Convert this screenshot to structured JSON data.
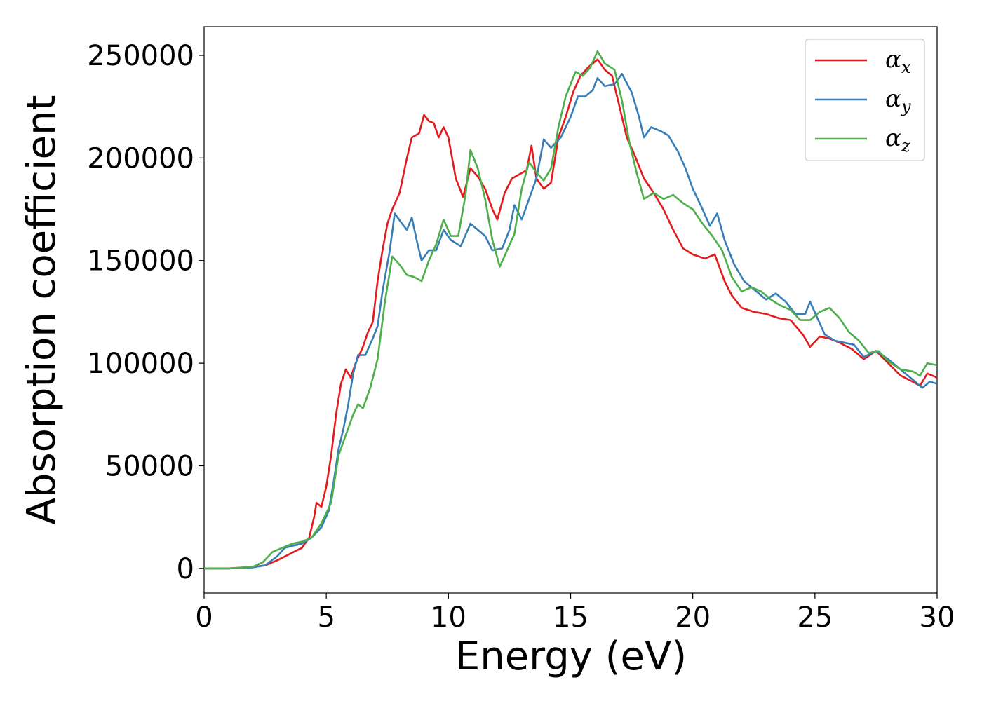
{
  "chart_data": {
    "type": "line",
    "title": "",
    "xlabel": "Energy (eV)",
    "ylabel": "Absorption coefficient",
    "xlim": [
      0,
      30
    ],
    "ylim": [
      -12000,
      264000
    ],
    "xticks": [
      0,
      5,
      10,
      15,
      20,
      25,
      30
    ],
    "yticks": [
      0,
      50000,
      100000,
      150000,
      200000,
      250000
    ],
    "xtick_labels": [
      "0",
      "5",
      "10",
      "15",
      "20",
      "25",
      "30"
    ],
    "ytick_labels": [
      "0",
      "50000",
      "100000",
      "150000",
      "200000",
      "250000"
    ],
    "grid": false,
    "legend_position": "top-right",
    "series": [
      {
        "name": "α_x",
        "symbol": "α",
        "subscript": "x",
        "color": "#e41a1c",
        "points": [
          [
            0,
            0
          ],
          [
            1,
            0
          ],
          [
            2,
            800
          ],
          [
            2.5,
            1500
          ],
          [
            3,
            4000
          ],
          [
            3.5,
            7000
          ],
          [
            4,
            10000
          ],
          [
            4.3,
            15000
          ],
          [
            4.5,
            25000
          ],
          [
            4.6,
            32000
          ],
          [
            4.8,
            30000
          ],
          [
            5,
            40000
          ],
          [
            5.2,
            55000
          ],
          [
            5.4,
            75000
          ],
          [
            5.6,
            90000
          ],
          [
            5.8,
            97000
          ],
          [
            6,
            93000
          ],
          [
            6.2,
            100000
          ],
          [
            6.5,
            108000
          ],
          [
            6.7,
            115000
          ],
          [
            6.9,
            120000
          ],
          [
            7.1,
            140000
          ],
          [
            7.3,
            155000
          ],
          [
            7.5,
            168000
          ],
          [
            7.7,
            175000
          ],
          [
            8,
            183000
          ],
          [
            8.3,
            200000
          ],
          [
            8.5,
            210000
          ],
          [
            8.8,
            212000
          ],
          [
            9,
            221000
          ],
          [
            9.2,
            218000
          ],
          [
            9.4,
            217000
          ],
          [
            9.6,
            210000
          ],
          [
            9.8,
            215000
          ],
          [
            10,
            210000
          ],
          [
            10.3,
            190000
          ],
          [
            10.6,
            181000
          ],
          [
            10.9,
            195000
          ],
          [
            11.2,
            191000
          ],
          [
            11.5,
            185000
          ],
          [
            11.8,
            175000
          ],
          [
            12,
            170000
          ],
          [
            12.3,
            183000
          ],
          [
            12.6,
            190000
          ],
          [
            12.9,
            192000
          ],
          [
            13.2,
            194000
          ],
          [
            13.4,
            206000
          ],
          [
            13.6,
            190000
          ],
          [
            13.9,
            185000
          ],
          [
            14.2,
            188000
          ],
          [
            14.5,
            210000
          ],
          [
            14.8,
            220000
          ],
          [
            15.1,
            232000
          ],
          [
            15.4,
            240000
          ],
          [
            15.7,
            244000
          ],
          [
            16.1,
            248000
          ],
          [
            16.4,
            243000
          ],
          [
            16.7,
            240000
          ],
          [
            17,
            225000
          ],
          [
            17.3,
            210000
          ],
          [
            17.6,
            202000
          ],
          [
            18,
            190000
          ],
          [
            18.4,
            183000
          ],
          [
            18.8,
            175000
          ],
          [
            19.2,
            165000
          ],
          [
            19.6,
            156000
          ],
          [
            20,
            153000
          ],
          [
            20.5,
            151000
          ],
          [
            20.9,
            153000
          ],
          [
            21.3,
            140000
          ],
          [
            21.6,
            133000
          ],
          [
            22,
            127000
          ],
          [
            22.5,
            125000
          ],
          [
            23,
            124000
          ],
          [
            23.5,
            122000
          ],
          [
            24,
            121000
          ],
          [
            24.5,
            114000
          ],
          [
            24.8,
            108000
          ],
          [
            25.2,
            113000
          ],
          [
            25.6,
            112000
          ],
          [
            26,
            110000
          ],
          [
            26.5,
            107000
          ],
          [
            27,
            102000
          ],
          [
            27.5,
            106000
          ],
          [
            28,
            100000
          ],
          [
            28.5,
            94000
          ],
          [
            29,
            91000
          ],
          [
            29.3,
            89000
          ],
          [
            29.6,
            95000
          ],
          [
            30,
            93000
          ]
        ]
      },
      {
        "name": "α_y",
        "symbol": "α",
        "subscript": "y",
        "color": "#377eb8",
        "points": [
          [
            0,
            0
          ],
          [
            1,
            0
          ],
          [
            2,
            500
          ],
          [
            2.5,
            1500
          ],
          [
            3,
            6000
          ],
          [
            3.3,
            10000
          ],
          [
            3.6,
            11000
          ],
          [
            4,
            12000
          ],
          [
            4.4,
            15000
          ],
          [
            4.8,
            20000
          ],
          [
            5.1,
            28000
          ],
          [
            5.3,
            42000
          ],
          [
            5.5,
            58000
          ],
          [
            5.7,
            68000
          ],
          [
            5.9,
            80000
          ],
          [
            6.1,
            95000
          ],
          [
            6.3,
            104000
          ],
          [
            6.6,
            104000
          ],
          [
            6.9,
            112000
          ],
          [
            7.1,
            118000
          ],
          [
            7.3,
            135000
          ],
          [
            7.6,
            155000
          ],
          [
            7.8,
            173000
          ],
          [
            8.1,
            168000
          ],
          [
            8.3,
            165000
          ],
          [
            8.5,
            171000
          ],
          [
            8.7,
            160000
          ],
          [
            8.9,
            150000
          ],
          [
            9.2,
            155000
          ],
          [
            9.5,
            155000
          ],
          [
            9.8,
            165000
          ],
          [
            10.1,
            160000
          ],
          [
            10.5,
            157000
          ],
          [
            10.9,
            168000
          ],
          [
            11.2,
            165000
          ],
          [
            11.5,
            162000
          ],
          [
            11.8,
            155000
          ],
          [
            12.2,
            156000
          ],
          [
            12.5,
            165000
          ],
          [
            12.7,
            177000
          ],
          [
            13,
            170000
          ],
          [
            13.3,
            180000
          ],
          [
            13.6,
            190000
          ],
          [
            13.9,
            209000
          ],
          [
            14.2,
            205000
          ],
          [
            14.6,
            210000
          ],
          [
            15,
            220000
          ],
          [
            15.3,
            230000
          ],
          [
            15.6,
            230000
          ],
          [
            15.9,
            233000
          ],
          [
            16.1,
            239000
          ],
          [
            16.4,
            235000
          ],
          [
            16.8,
            236000
          ],
          [
            17.1,
            241000
          ],
          [
            17.5,
            232000
          ],
          [
            17.8,
            220000
          ],
          [
            18,
            210000
          ],
          [
            18.3,
            215000
          ],
          [
            18.7,
            213000
          ],
          [
            19,
            211000
          ],
          [
            19.4,
            203000
          ],
          [
            19.7,
            195000
          ],
          [
            20,
            185000
          ],
          [
            20.4,
            175000
          ],
          [
            20.7,
            167000
          ],
          [
            21,
            173000
          ],
          [
            21.3,
            160000
          ],
          [
            21.7,
            148000
          ],
          [
            22.1,
            140000
          ],
          [
            22.5,
            136000
          ],
          [
            23,
            131000
          ],
          [
            23.4,
            134000
          ],
          [
            23.8,
            130000
          ],
          [
            24.2,
            124000
          ],
          [
            24.6,
            124000
          ],
          [
            24.8,
            130000
          ],
          [
            25.1,
            122000
          ],
          [
            25.4,
            114000
          ],
          [
            25.8,
            111000
          ],
          [
            26.2,
            110000
          ],
          [
            26.6,
            109000
          ],
          [
            27,
            103000
          ],
          [
            27.5,
            106000
          ],
          [
            28,
            102000
          ],
          [
            28.5,
            97000
          ],
          [
            29,
            92000
          ],
          [
            29.4,
            88000
          ],
          [
            29.7,
            91000
          ],
          [
            30,
            90000
          ]
        ]
      },
      {
        "name": "α_z",
        "symbol": "α",
        "subscript": "z",
        "color": "#4daf4a",
        "points": [
          [
            0,
            0
          ],
          [
            1,
            0
          ],
          [
            2,
            800
          ],
          [
            2.4,
            3000
          ],
          [
            2.8,
            8000
          ],
          [
            3.2,
            10000
          ],
          [
            3.6,
            12000
          ],
          [
            4,
            13000
          ],
          [
            4.4,
            15000
          ],
          [
            4.8,
            22000
          ],
          [
            5.2,
            32000
          ],
          [
            5.5,
            55000
          ],
          [
            5.8,
            65000
          ],
          [
            6.1,
            75000
          ],
          [
            6.3,
            80000
          ],
          [
            6.5,
            78000
          ],
          [
            6.8,
            88000
          ],
          [
            7.1,
            102000
          ],
          [
            7.4,
            130000
          ],
          [
            7.7,
            152000
          ],
          [
            8,
            148000
          ],
          [
            8.3,
            143000
          ],
          [
            8.6,
            142000
          ],
          [
            8.9,
            140000
          ],
          [
            9.2,
            150000
          ],
          [
            9.5,
            158000
          ],
          [
            9.8,
            170000
          ],
          [
            10.1,
            162000
          ],
          [
            10.4,
            162000
          ],
          [
            10.7,
            182000
          ],
          [
            10.9,
            204000
          ],
          [
            11.2,
            195000
          ],
          [
            11.5,
            180000
          ],
          [
            11.8,
            160000
          ],
          [
            12.1,
            147000
          ],
          [
            12.4,
            155000
          ],
          [
            12.7,
            163000
          ],
          [
            13,
            185000
          ],
          [
            13.3,
            198000
          ],
          [
            13.6,
            193000
          ],
          [
            13.9,
            189000
          ],
          [
            14.2,
            195000
          ],
          [
            14.5,
            215000
          ],
          [
            14.8,
            230000
          ],
          [
            15.2,
            242000
          ],
          [
            15.5,
            240000
          ],
          [
            15.8,
            244000
          ],
          [
            16.1,
            252000
          ],
          [
            16.4,
            246000
          ],
          [
            16.8,
            243000
          ],
          [
            17.1,
            228000
          ],
          [
            17.4,
            208000
          ],
          [
            17.7,
            193000
          ],
          [
            18,
            180000
          ],
          [
            18.4,
            183000
          ],
          [
            18.8,
            180000
          ],
          [
            19.2,
            182000
          ],
          [
            19.6,
            178000
          ],
          [
            20,
            175000
          ],
          [
            20.4,
            168000
          ],
          [
            20.8,
            162000
          ],
          [
            21.2,
            155000
          ],
          [
            21.6,
            142000
          ],
          [
            22,
            135000
          ],
          [
            22.4,
            137000
          ],
          [
            22.8,
            135000
          ],
          [
            23.2,
            131000
          ],
          [
            23.6,
            128000
          ],
          [
            24,
            126000
          ],
          [
            24.4,
            121000
          ],
          [
            24.8,
            121000
          ],
          [
            25.2,
            125000
          ],
          [
            25.6,
            127000
          ],
          [
            26,
            122000
          ],
          [
            26.4,
            115000
          ],
          [
            26.8,
            111000
          ],
          [
            27.2,
            105000
          ],
          [
            27.6,
            106000
          ],
          [
            28,
            101000
          ],
          [
            28.5,
            97000
          ],
          [
            29,
            96000
          ],
          [
            29.3,
            94000
          ],
          [
            29.6,
            100000
          ],
          [
            30,
            99000
          ]
        ]
      }
    ]
  }
}
